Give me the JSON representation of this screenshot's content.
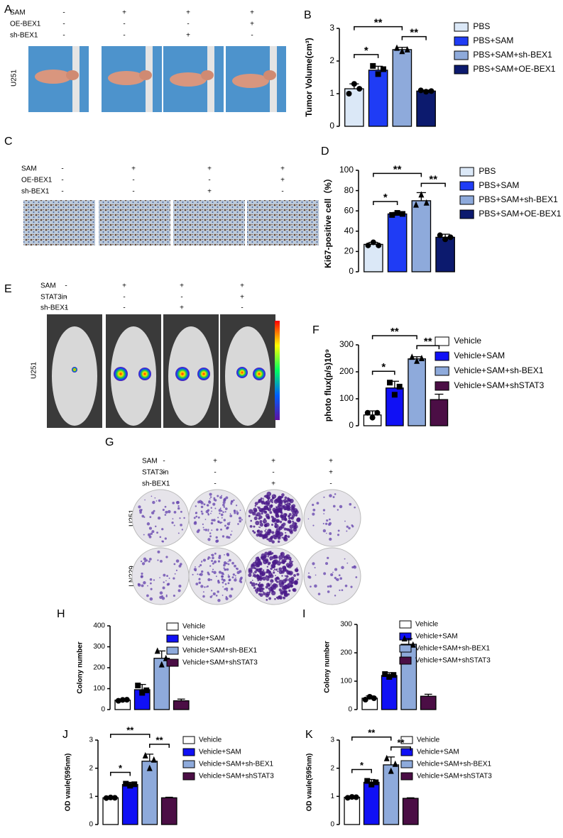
{
  "panels": {
    "A": {
      "label": "A",
      "conditions": [
        {
          "name": "SAM",
          "signs": [
            "-",
            "+",
            "+",
            "+"
          ]
        },
        {
          "name": "OE-BEX1",
          "signs": [
            "-",
            "-",
            "-",
            "+"
          ]
        },
        {
          "name": "sh-BEX1",
          "signs": [
            "-",
            "-",
            "+",
            "-"
          ]
        }
      ],
      "row_labels": [
        "U251"
      ]
    },
    "C": {
      "label": "C",
      "conditions": [
        {
          "name": "SAM",
          "signs": [
            "-",
            "+",
            "+",
            "+"
          ]
        },
        {
          "name": "OE-BEX1",
          "signs": [
            "-",
            "-",
            "-",
            "+"
          ]
        },
        {
          "name": "sh-BEX1",
          "signs": [
            "-",
            "-",
            "+",
            "-"
          ]
        }
      ]
    },
    "E": {
      "label": "E",
      "conditions": [
        {
          "name": "SAM",
          "signs": [
            "-",
            "+",
            "+",
            "+"
          ]
        },
        {
          "name": "STAT3in",
          "signs": [
            "-",
            "-",
            "-",
            "+"
          ]
        },
        {
          "name": "sh-BEX1",
          "signs": [
            "-",
            "-",
            "+",
            "-"
          ]
        }
      ],
      "row_labels": [
        "U251"
      ]
    },
    "G": {
      "label": "G",
      "conditions": [
        {
          "name": "SAM",
          "signs": [
            "-",
            "+",
            "+",
            "+"
          ]
        },
        {
          "name": "STAT3in",
          "signs": [
            "-",
            "-",
            "-",
            "+"
          ]
        },
        {
          "name": "sh-BEX1",
          "signs": [
            "-",
            "-",
            "+",
            "-"
          ]
        }
      ],
      "row_labels": [
        "U251",
        "LN229"
      ]
    }
  },
  "chart_data": [
    {
      "type": "bar",
      "panel": "B",
      "y_label": "Tumor Volume(cm³)",
      "ylim": [
        0,
        3
      ],
      "yticks": [
        0,
        1,
        2,
        3
      ],
      "annotations": [
        "*",
        "**",
        "**"
      ],
      "series": [
        {
          "name": "PBS",
          "color": "#dbe8f7",
          "values": [
            1.15
          ],
          "errors": [
            0.15
          ],
          "points": [
            1.0,
            1.3,
            1.15
          ]
        },
        {
          "name": "PBS+SAM",
          "color": "#1f3cf5",
          "values": [
            1.72
          ],
          "errors": [
            0.12
          ],
          "points": [
            1.85,
            1.6,
            1.75
          ]
        },
        {
          "name": "PBS+SAM+sh-BEX1",
          "color": "#8eaadb",
          "values": [
            2.35
          ],
          "errors": [
            0.07
          ],
          "points": [
            2.4,
            2.3,
            2.35
          ]
        },
        {
          "name": "PBS+SAM+OE-BEX1",
          "color": "#0c1a6e",
          "values": [
            1.08
          ],
          "errors": [
            0.03
          ],
          "points": [
            1.1,
            1.06,
            1.08
          ]
        }
      ]
    },
    {
      "type": "bar",
      "panel": "D",
      "y_label": "Ki67-positive cell（%）",
      "ylim": [
        0,
        100
      ],
      "yticks": [
        0,
        20,
        40,
        60,
        80,
        100
      ],
      "annotations": [
        "*",
        "**",
        "**"
      ],
      "series": [
        {
          "name": "PBS",
          "color": "#dbe8f7",
          "values": [
            27
          ],
          "errors": [
            2
          ],
          "points": [
            26,
            29,
            26
          ]
        },
        {
          "name": "PBS+SAM",
          "color": "#1f3cf5",
          "values": [
            57
          ],
          "errors": [
            1.5
          ],
          "points": [
            56,
            58,
            57
          ]
        },
        {
          "name": "PBS+SAM+sh-BEX1",
          "color": "#8eaadb",
          "values": [
            70
          ],
          "errors": [
            8
          ],
          "points": [
            66,
            76,
            68
          ]
        },
        {
          "name": "PBS+SAM+OE-BEX1",
          "color": "#0c1a6e",
          "values": [
            34
          ],
          "errors": [
            3
          ],
          "points": [
            36,
            32,
            34
          ]
        }
      ]
    },
    {
      "type": "bar",
      "panel": "F",
      "y_label": "photo flux(p/s)10⁹",
      "ylim": [
        0,
        300
      ],
      "yticks": [
        0,
        100,
        200,
        300
      ],
      "annotations": [
        "*",
        "**",
        "**"
      ],
      "series": [
        {
          "name": "Vehicle",
          "color": "#ffffff",
          "values": [
            40
          ],
          "errors": [
            15
          ],
          "points": [
            48,
            30,
            48
          ]
        },
        {
          "name": "Vehicle+SAM",
          "color": "#1010f5",
          "values": [
            140
          ],
          "errors": [
            25
          ],
          "points": [
            160,
            115,
            145
          ]
        },
        {
          "name": "Vehicle+SAM+sh-BEX1",
          "color": "#8eaadb",
          "values": [
            248
          ],
          "errors": [
            8
          ],
          "points": [
            255,
            240,
            250
          ]
        },
        {
          "name": "Vehicle+SAM+shSTAT3",
          "color": "#4b0e45",
          "values": [
            97
          ],
          "errors": [
            20
          ]
        }
      ]
    },
    {
      "type": "bar",
      "panel": "H",
      "y_label": "Colony number",
      "ylim": [
        0,
        400
      ],
      "yticks": [
        0,
        100,
        200,
        300,
        400
      ],
      "annotations": [],
      "series": [
        {
          "name": "Vehicle",
          "color": "#ffffff",
          "values": [
            45
          ],
          "errors": [
            5
          ],
          "points": [
            42,
            46,
            47
          ]
        },
        {
          "name": "Vehicle+SAM",
          "color": "#1010f5",
          "values": [
            95
          ],
          "errors": [
            25
          ],
          "points": [
            115,
            80,
            92
          ]
        },
        {
          "name": "Vehicle+SAM+sh-BEX1",
          "color": "#8eaadb",
          "values": [
            245
          ],
          "errors": [
            35
          ],
          "points": [
            280,
            215,
            245
          ]
        },
        {
          "name": "Vehicle+SAM+shSTAT3",
          "color": "#4b0e45",
          "values": [
            42
          ],
          "errors": [
            8
          ]
        }
      ]
    },
    {
      "type": "bar",
      "panel": "I",
      "y_label": "Colony number",
      "ylim": [
        0,
        300
      ],
      "yticks": [
        0,
        100,
        200,
        300
      ],
      "annotations": [],
      "series": [
        {
          "name": "Vehicle",
          "color": "#ffffff",
          "values": [
            40
          ],
          "errors": [
            8
          ],
          "points": [
            35,
            45,
            40
          ]
        },
        {
          "name": "Vehicle+SAM",
          "color": "#1010f5",
          "values": [
            120
          ],
          "errors": [
            10
          ],
          "points": [
            125,
            115,
            122
          ]
        },
        {
          "name": "Vehicle+SAM+sh-BEX1",
          "color": "#8eaadb",
          "values": [
            230
          ],
          "errors": [
            20
          ],
          "points": [
            250,
            215,
            228
          ]
        },
        {
          "name": "Vehicle+SAM+shSTAT3",
          "color": "#4b0e45",
          "values": [
            47
          ],
          "errors": [
            7
          ]
        }
      ]
    },
    {
      "type": "bar",
      "panel": "J",
      "y_label": "OD vaule(595nm)",
      "ylim": [
        0,
        3
      ],
      "yticks": [
        0,
        1,
        2,
        3
      ],
      "annotations": [
        "*",
        "**",
        "**"
      ],
      "series": [
        {
          "name": "Vehicle",
          "color": "#ffffff",
          "values": [
            0.95
          ],
          "errors": [
            0.02
          ],
          "points": [
            0.94,
            0.96,
            0.95
          ]
        },
        {
          "name": "Vehicle+SAM",
          "color": "#1010f5",
          "values": [
            1.42
          ],
          "errors": [
            0.08
          ],
          "points": [
            1.45,
            1.38,
            1.43
          ]
        },
        {
          "name": "Vehicle+SAM+sh-BEX1",
          "color": "#8eaadb",
          "values": [
            2.25
          ],
          "errors": [
            0.25
          ],
          "points": [
            2.45,
            2.0,
            2.3
          ]
        },
        {
          "name": "Vehicle+SAM+shSTAT3",
          "color": "#4b0e45",
          "values": [
            0.95
          ],
          "errors": [
            0.02
          ]
        }
      ]
    },
    {
      "type": "bar",
      "panel": "K",
      "y_label": "OD vaule(595nm)",
      "ylim": [
        0,
        3
      ],
      "yticks": [
        0,
        1,
        2,
        3
      ],
      "annotations": [
        "*",
        "**",
        "**"
      ],
      "series": [
        {
          "name": "Vehicle",
          "color": "#ffffff",
          "values": [
            0.97
          ],
          "errors": [
            0.03
          ],
          "points": [
            0.95,
            0.98,
            0.97
          ]
        },
        {
          "name": "Vehicle+SAM",
          "color": "#1010f5",
          "values": [
            1.5
          ],
          "errors": [
            0.1
          ],
          "points": [
            1.55,
            1.42,
            1.5
          ]
        },
        {
          "name": "Vehicle+SAM+sh-BEX1",
          "color": "#8eaadb",
          "values": [
            2.12
          ],
          "errors": [
            0.28
          ],
          "points": [
            2.35,
            1.9,
            2.15
          ]
        },
        {
          "name": "Vehicle+SAM+shSTAT3",
          "color": "#4b0e45",
          "values": [
            0.93
          ],
          "errors": [
            0.02
          ]
        }
      ]
    }
  ]
}
